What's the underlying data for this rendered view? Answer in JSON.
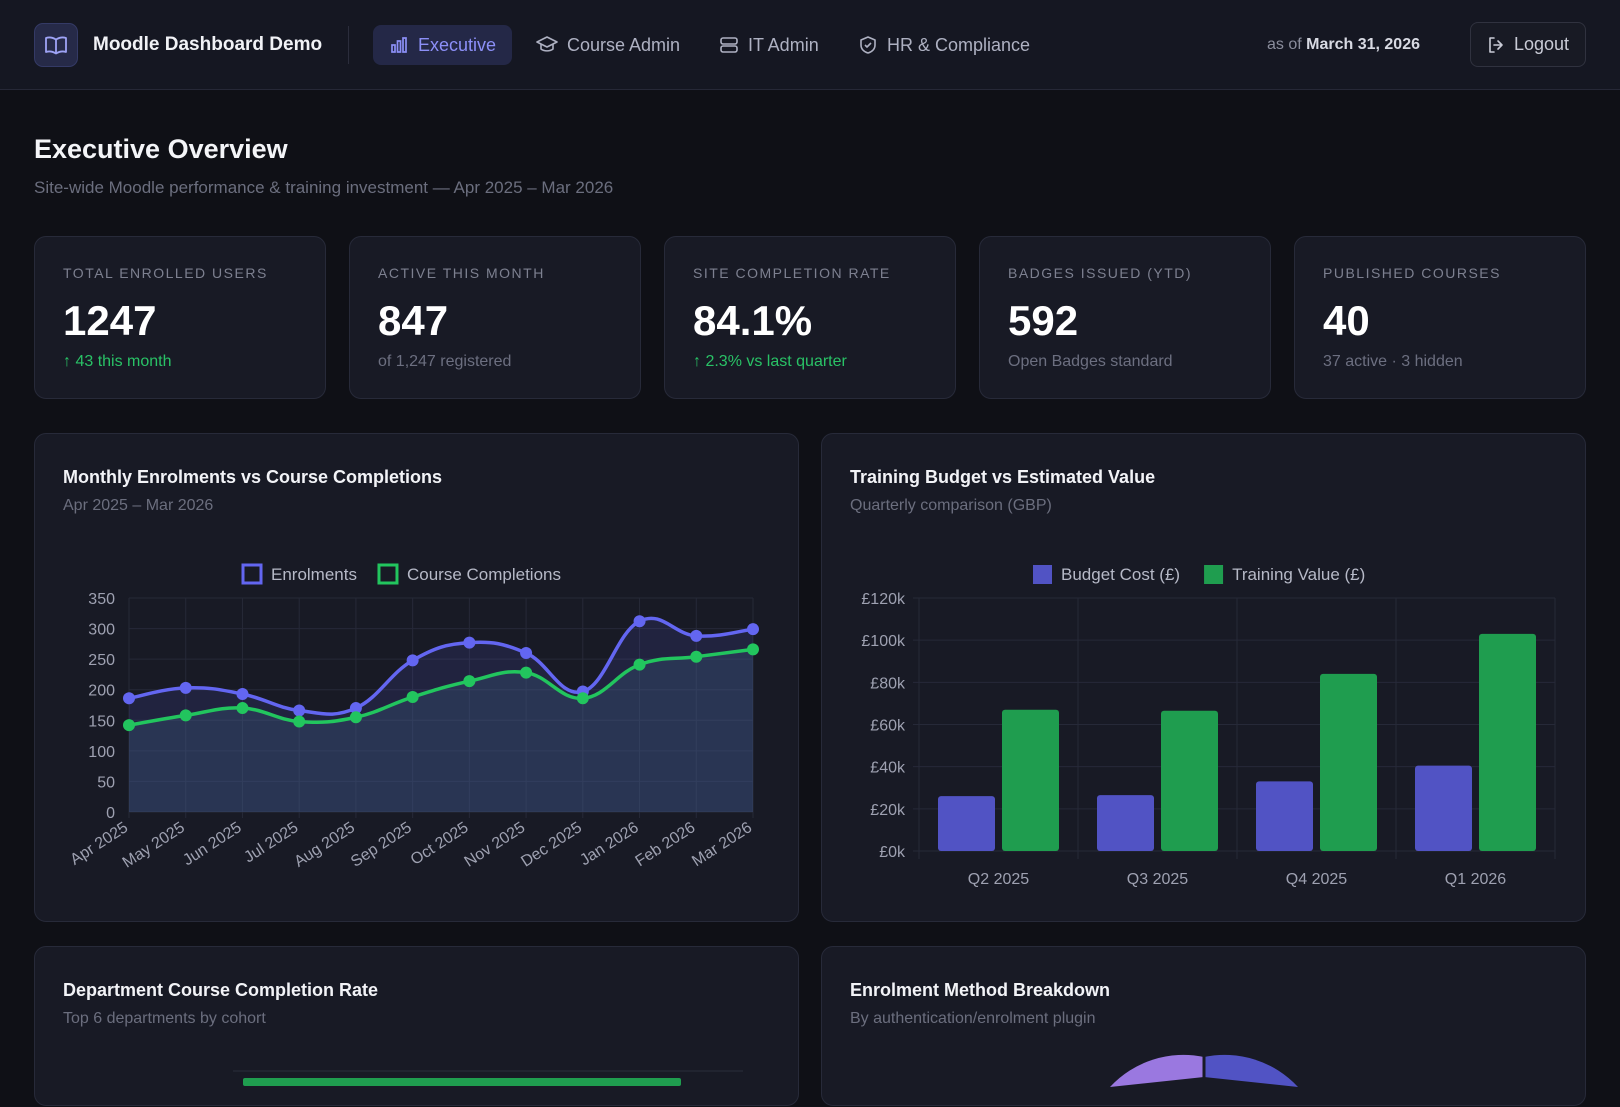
{
  "nav": {
    "brand": "Moodle Dashboard Demo",
    "tabs": [
      {
        "label": "Executive",
        "icon": "bar-chart-icon",
        "active": true
      },
      {
        "label": "Course Admin",
        "icon": "graduation-cap-icon",
        "active": false
      },
      {
        "label": "IT Admin",
        "icon": "server-icon",
        "active": false
      },
      {
        "label": "HR & Compliance",
        "icon": "shield-check-icon",
        "active": false
      }
    ],
    "as_of_prefix": "as of",
    "as_of_date": "March 31, 2026",
    "logout": "Logout"
  },
  "page": {
    "title": "Executive Overview",
    "subtitle": "Site-wide Moodle performance & training investment — Apr 2025 – Mar 2026"
  },
  "kpis": [
    {
      "label": "Total Enrolled Users",
      "value": "1247",
      "sub": "↑ 43 this month",
      "trend": "up"
    },
    {
      "label": "Active This Month",
      "value": "847",
      "sub": "of 1,247 registered",
      "trend": "neutral"
    },
    {
      "label": "Site Completion Rate",
      "value": "84.1%",
      "sub": "↑ 2.3% vs last quarter",
      "trend": "up"
    },
    {
      "label": "Badges Issued (YTD)",
      "value": "592",
      "sub": "Open Badges standard",
      "trend": "neutral"
    },
    {
      "label": "Published Courses",
      "value": "40",
      "sub": "37 active · 3 hidden",
      "trend": "neutral"
    }
  ],
  "panels": {
    "enrolments": {
      "title": "Monthly Enrolments vs Course Completions",
      "subtitle": "Apr 2025 – Mar 2026"
    },
    "budget": {
      "title": "Training Budget vs Estimated Value",
      "subtitle": "Quarterly comparison (GBP)"
    },
    "department": {
      "title": "Department Course Completion Rate",
      "subtitle": "Top 6 departments by cohort"
    },
    "method": {
      "title": "Enrolment Method Breakdown",
      "subtitle": "By authentication/enrolment plugin"
    }
  },
  "chart_data": [
    {
      "type": "line",
      "title": "Monthly Enrolments vs Course Completions",
      "subtitle": "Apr 2025 – Mar 2026",
      "x": [
        "Apr 2025",
        "May 2025",
        "Jun 2025",
        "Jul 2025",
        "Aug 2025",
        "Sep 2025",
        "Oct 2025",
        "Nov 2025",
        "Dec 2025",
        "Jan 2026",
        "Feb 2026",
        "Mar 2026"
      ],
      "series": [
        {
          "name": "Enrolments",
          "color": "#6366f1",
          "values": [
            186,
            203,
            193,
            166,
            170,
            248,
            277,
            260,
            197,
            312,
            288,
            299
          ]
        },
        {
          "name": "Course Completions",
          "color": "#22c55e",
          "values": [
            142,
            158,
            170,
            148,
            155,
            188,
            214,
            228,
            186,
            241,
            254,
            266
          ]
        }
      ],
      "ylim": [
        0,
        350
      ],
      "yticks": [
        0,
        50,
        100,
        150,
        200,
        250,
        300,
        350
      ],
      "legend": "top",
      "grid": true
    },
    {
      "type": "bar",
      "title": "Training Budget vs Estimated Value",
      "subtitle": "Quarterly comparison (GBP)",
      "categories": [
        "Q2 2025",
        "Q3 2025",
        "Q4 2025",
        "Q1 2026"
      ],
      "series": [
        {
          "name": "Budget Cost (£)",
          "color": "#5153c4",
          "values": [
            26000,
            26500,
            33000,
            40500
          ]
        },
        {
          "name": "Training Value (£)",
          "color": "#1f9d4f",
          "values": [
            67000,
            66500,
            84000,
            103000
          ]
        }
      ],
      "ylim": [
        0,
        120000
      ],
      "yticks": [
        0,
        20000,
        40000,
        60000,
        80000,
        100000,
        120000
      ],
      "ytick_labels": [
        "£0k",
        "£20k",
        "£40k",
        "£60k",
        "£80k",
        "£100k",
        "£120k"
      ],
      "legend": "top",
      "grid": true
    }
  ]
}
